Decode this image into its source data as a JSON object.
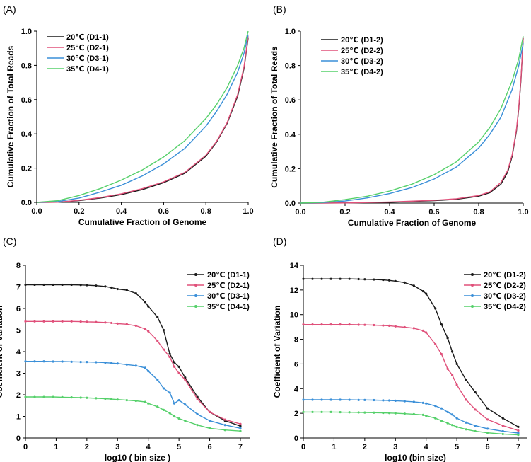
{
  "chart_data": [
    {
      "type": "line",
      "panel": "(A)",
      "xlabel": "Cumulative Fraction of Genome",
      "ylabel": "Cumulative Fraction of Total Reads",
      "xlim": [
        0,
        1
      ],
      "ylim": [
        0,
        1
      ],
      "xticks": [
        "0.0",
        "0.2",
        "0.4",
        "0.6",
        "0.8",
        "1.0"
      ],
      "yticks": [
        "0.0",
        "0.2",
        "0.4",
        "0.6",
        "0.8",
        "1.0"
      ],
      "legend_position": "top-left",
      "series": [
        {
          "name": "20℃ (D1-1)",
          "color": "#1a1a1a",
          "x": [
            0,
            0.1,
            0.2,
            0.3,
            0.4,
            0.5,
            0.6,
            0.7,
            0.8,
            0.85,
            0.9,
            0.95,
            0.98,
            1.0
          ],
          "y": [
            0,
            0.001,
            0.01,
            0.025,
            0.045,
            0.075,
            0.115,
            0.17,
            0.27,
            0.35,
            0.46,
            0.62,
            0.78,
            0.96
          ]
        },
        {
          "name": "25℃ (D2-1)",
          "color": "#e0507a",
          "x": [
            0,
            0.1,
            0.2,
            0.3,
            0.4,
            0.5,
            0.6,
            0.7,
            0.8,
            0.85,
            0.9,
            0.95,
            0.98,
            1.0
          ],
          "y": [
            0,
            0.001,
            0.012,
            0.028,
            0.05,
            0.08,
            0.12,
            0.175,
            0.275,
            0.355,
            0.465,
            0.63,
            0.79,
            0.97
          ]
        },
        {
          "name": "30℃ (D3-1)",
          "color": "#3a8fd8",
          "x": [
            0,
            0.1,
            0.2,
            0.3,
            0.4,
            0.5,
            0.6,
            0.7,
            0.8,
            0.85,
            0.9,
            0.95,
            0.98,
            1.0
          ],
          "y": [
            0,
            0.005,
            0.025,
            0.06,
            0.1,
            0.155,
            0.225,
            0.315,
            0.445,
            0.53,
            0.63,
            0.76,
            0.87,
            0.98
          ]
        },
        {
          "name": "35℃ (D4-1)",
          "color": "#55d06a",
          "x": [
            0,
            0.1,
            0.2,
            0.3,
            0.4,
            0.5,
            0.6,
            0.7,
            0.8,
            0.85,
            0.9,
            0.95,
            0.98,
            1.0
          ],
          "y": [
            0,
            0.01,
            0.04,
            0.08,
            0.13,
            0.19,
            0.265,
            0.36,
            0.49,
            0.57,
            0.67,
            0.8,
            0.9,
            1.0
          ]
        }
      ]
    },
    {
      "type": "line",
      "panel": "(B)",
      "xlabel": "Cumulative Fraction of Genome",
      "ylabel": "Cumulative Fraction of Total Reads",
      "xlim": [
        0,
        1
      ],
      "ylim": [
        0,
        1
      ],
      "xticks": [
        "0.0",
        "0.2",
        "0.4",
        "0.6",
        "0.8",
        "1.0"
      ],
      "yticks": [
        "0.0",
        "0.2",
        "0.4",
        "0.6",
        "0.8",
        "1.0"
      ],
      "legend_position": "top-left",
      "series": [
        {
          "name": "20℃ (D1-2)",
          "color": "#1a1a1a",
          "x": [
            0,
            0.2,
            0.4,
            0.6,
            0.7,
            0.8,
            0.85,
            0.9,
            0.93,
            0.95,
            0.97,
            0.98,
            0.99,
            1.0
          ],
          "y": [
            0,
            0.001,
            0.005,
            0.014,
            0.022,
            0.04,
            0.06,
            0.11,
            0.18,
            0.27,
            0.42,
            0.55,
            0.72,
            0.96
          ]
        },
        {
          "name": "25℃ (D2-2)",
          "color": "#e0507a",
          "x": [
            0,
            0.2,
            0.4,
            0.6,
            0.7,
            0.8,
            0.85,
            0.9,
            0.93,
            0.95,
            0.97,
            0.98,
            0.99,
            1.0
          ],
          "y": [
            0,
            0.001,
            0.006,
            0.016,
            0.025,
            0.044,
            0.065,
            0.12,
            0.19,
            0.28,
            0.43,
            0.56,
            0.73,
            0.96
          ]
        },
        {
          "name": "30℃ (D3-2)",
          "color": "#3a8fd8",
          "x": [
            0,
            0.1,
            0.2,
            0.3,
            0.4,
            0.5,
            0.6,
            0.7,
            0.8,
            0.85,
            0.9,
            0.95,
            0.98,
            1.0
          ],
          "y": [
            0,
            0.003,
            0.012,
            0.03,
            0.055,
            0.09,
            0.14,
            0.21,
            0.32,
            0.4,
            0.5,
            0.66,
            0.8,
            0.93
          ]
        },
        {
          "name": "35℃ (D4-2)",
          "color": "#55d06a",
          "x": [
            0,
            0.1,
            0.2,
            0.3,
            0.4,
            0.5,
            0.6,
            0.7,
            0.8,
            0.85,
            0.9,
            0.95,
            0.98,
            1.0
          ],
          "y": [
            0,
            0.005,
            0.02,
            0.04,
            0.07,
            0.11,
            0.165,
            0.24,
            0.355,
            0.44,
            0.55,
            0.71,
            0.84,
            0.97
          ]
        }
      ]
    },
    {
      "type": "line",
      "panel": "(C)",
      "xlabel": "log10 ( bin size )",
      "ylabel": "Coefficient of Variation",
      "xlim": [
        0,
        7.3
      ],
      "ylim": [
        0,
        8
      ],
      "xticks": [
        "0",
        "1",
        "2",
        "3",
        "4",
        "5",
        "6",
        "7"
      ],
      "yticks": [
        "0",
        "1",
        "2",
        "3",
        "4",
        "5",
        "6",
        "7",
        "8"
      ],
      "legend_position": "top-right",
      "series": [
        {
          "name": "20℃ (D1-1)",
          "color": "#1a1a1a",
          "x": [
            0,
            0.3,
            0.6,
            0.9,
            1.2,
            1.5,
            1.8,
            2.0,
            2.3,
            2.6,
            2.8,
            3.0,
            3.3,
            3.6,
            3.9,
            4.0,
            4.3,
            4.5,
            4.7,
            4.85,
            5.0,
            5.2,
            5.6,
            6.0,
            6.5,
            7.0
          ],
          "y": [
            7.1,
            7.1,
            7.1,
            7.1,
            7.1,
            7.1,
            7.09,
            7.08,
            7.06,
            7.02,
            6.97,
            6.9,
            6.85,
            6.7,
            6.3,
            6.1,
            5.6,
            5.0,
            3.9,
            3.5,
            3.3,
            2.8,
            1.9,
            1.2,
            0.8,
            0.55
          ]
        },
        {
          "name": "25℃ (D2-1)",
          "color": "#e0507a",
          "x": [
            0,
            0.3,
            0.6,
            0.9,
            1.2,
            1.5,
            1.8,
            2.0,
            2.3,
            2.6,
            2.8,
            3.0,
            3.3,
            3.6,
            3.9,
            4.0,
            4.3,
            4.5,
            4.7,
            4.85,
            5.0,
            5.2,
            5.6,
            6.0,
            6.5,
            7.0
          ],
          "y": [
            5.4,
            5.4,
            5.4,
            5.4,
            5.4,
            5.4,
            5.39,
            5.38,
            5.37,
            5.35,
            5.33,
            5.3,
            5.27,
            5.2,
            5.05,
            4.95,
            4.5,
            4.1,
            3.75,
            3.3,
            3.0,
            2.7,
            1.8,
            1.2,
            0.85,
            0.65
          ]
        },
        {
          "name": "30℃ (D3-1)",
          "color": "#3a8fd8",
          "x": [
            0,
            0.3,
            0.6,
            0.9,
            1.2,
            1.5,
            1.8,
            2.0,
            2.3,
            2.6,
            2.8,
            3.0,
            3.3,
            3.6,
            3.9,
            4.0,
            4.3,
            4.5,
            4.7,
            4.85,
            5.0,
            5.2,
            5.6,
            6.0,
            6.5,
            7.0
          ],
          "y": [
            3.55,
            3.55,
            3.55,
            3.54,
            3.54,
            3.53,
            3.52,
            3.52,
            3.51,
            3.49,
            3.47,
            3.45,
            3.4,
            3.35,
            3.25,
            3.1,
            2.7,
            2.3,
            2.1,
            1.6,
            1.75,
            1.55,
            1.1,
            0.8,
            0.6,
            0.45
          ]
        },
        {
          "name": "35℃ (D4-1)",
          "color": "#55d06a",
          "x": [
            0,
            0.3,
            0.6,
            0.9,
            1.2,
            1.5,
            1.8,
            2.0,
            2.3,
            2.6,
            2.8,
            3.0,
            3.3,
            3.6,
            3.9,
            4.0,
            4.3,
            4.5,
            4.7,
            4.85,
            5.0,
            5.2,
            5.6,
            6.0,
            6.5,
            7.0
          ],
          "y": [
            1.9,
            1.9,
            1.9,
            1.9,
            1.89,
            1.88,
            1.87,
            1.86,
            1.84,
            1.82,
            1.8,
            1.78,
            1.75,
            1.72,
            1.67,
            1.6,
            1.45,
            1.3,
            1.15,
            1.0,
            0.9,
            0.8,
            0.6,
            0.45,
            0.37,
            0.32
          ]
        }
      ]
    },
    {
      "type": "line",
      "panel": "(D)",
      "xlabel": "log10  (bin size)",
      "ylabel": "Coefficient of Variation",
      "xlim": [
        0,
        7.3
      ],
      "ylim": [
        0,
        14
      ],
      "xticks": [
        "0",
        "1",
        "2",
        "3",
        "4",
        "5",
        "6",
        "7"
      ],
      "yticks": [
        "0",
        "2",
        "4",
        "6",
        "8",
        "10",
        "12",
        "14"
      ],
      "legend_position": "top-right",
      "series": [
        {
          "name": "20℃ (D1-2)",
          "color": "#1a1a1a",
          "x": [
            0,
            0.3,
            0.6,
            0.9,
            1.2,
            1.5,
            1.8,
            2.0,
            2.3,
            2.6,
            2.8,
            3.0,
            3.3,
            3.6,
            3.9,
            4.0,
            4.3,
            4.5,
            4.7,
            4.85,
            5.0,
            5.3,
            5.6,
            6.0,
            6.5,
            7.0
          ],
          "y": [
            12.9,
            12.9,
            12.9,
            12.9,
            12.9,
            12.9,
            12.88,
            12.87,
            12.85,
            12.82,
            12.78,
            12.72,
            12.6,
            12.35,
            11.9,
            11.7,
            10.5,
            9.2,
            8.1,
            7.0,
            6.0,
            4.7,
            3.7,
            2.4,
            1.6,
            0.9
          ]
        },
        {
          "name": "25℃ (D2-2)",
          "color": "#e0507a",
          "x": [
            0,
            0.3,
            0.6,
            0.9,
            1.2,
            1.5,
            1.8,
            2.0,
            2.3,
            2.6,
            2.8,
            3.0,
            3.3,
            3.6,
            3.9,
            4.0,
            4.3,
            4.5,
            4.7,
            4.85,
            5.0,
            5.3,
            5.6,
            6.0,
            6.5,
            7.0
          ],
          "y": [
            9.2,
            9.2,
            9.2,
            9.2,
            9.2,
            9.2,
            9.18,
            9.17,
            9.15,
            9.12,
            9.1,
            9.05,
            8.98,
            8.9,
            8.7,
            8.55,
            7.6,
            6.8,
            5.6,
            5.1,
            4.3,
            3.1,
            2.3,
            1.5,
            1.0,
            0.6
          ]
        },
        {
          "name": "30℃ (D3-2)",
          "color": "#3a8fd8",
          "x": [
            0,
            0.3,
            0.6,
            0.9,
            1.2,
            1.5,
            1.8,
            2.0,
            2.3,
            2.6,
            2.8,
            3.0,
            3.3,
            3.6,
            3.9,
            4.0,
            4.3,
            4.5,
            4.7,
            4.85,
            5.0,
            5.3,
            5.6,
            6.0,
            6.5,
            7.0
          ],
          "y": [
            3.1,
            3.1,
            3.1,
            3.1,
            3.1,
            3.09,
            3.08,
            3.08,
            3.07,
            3.05,
            3.04,
            3.02,
            2.98,
            2.93,
            2.85,
            2.8,
            2.6,
            2.4,
            2.1,
            1.9,
            1.6,
            1.25,
            1.0,
            0.75,
            0.55,
            0.4
          ]
        },
        {
          "name": "35℃ (D4-2)",
          "color": "#55d06a",
          "x": [
            0,
            0.3,
            0.6,
            0.9,
            1.2,
            1.5,
            1.8,
            2.0,
            2.3,
            2.6,
            2.8,
            3.0,
            3.3,
            3.6,
            3.9,
            4.0,
            4.3,
            4.5,
            4.7,
            4.85,
            5.0,
            5.3,
            5.6,
            6.0,
            6.5,
            7.0
          ],
          "y": [
            2.1,
            2.1,
            2.1,
            2.1,
            2.09,
            2.08,
            2.07,
            2.06,
            2.05,
            2.03,
            2.02,
            2.0,
            1.97,
            1.93,
            1.87,
            1.8,
            1.6,
            1.4,
            1.2,
            1.05,
            0.9,
            0.7,
            0.55,
            0.42,
            0.32,
            0.25
          ]
        }
      ]
    }
  ]
}
